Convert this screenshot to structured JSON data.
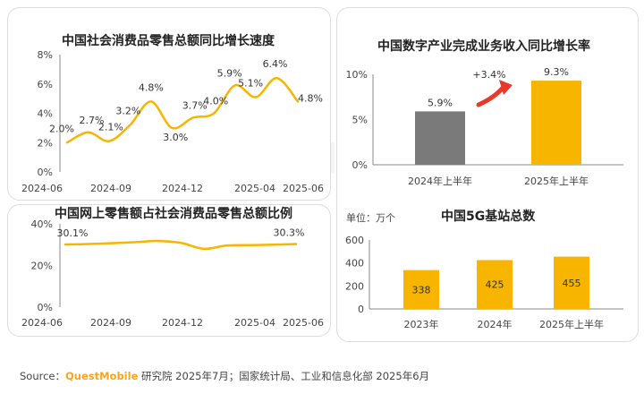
{
  "chart_data": [
    {
      "type": "line",
      "title": "中国社会消费品零售总额同比增长速度",
      "x_labels": [
        "2024-06",
        "2024-09",
        "2024-12",
        "2025-04",
        "2025-06"
      ],
      "y_ticks": [
        "0%",
        "2%",
        "4%",
        "6%",
        "8%"
      ],
      "ylim": [
        0,
        8
      ],
      "series": [
        {
          "values": [
            2.0,
            2.7,
            2.1,
            3.2,
            4.8,
            3.0,
            3.7,
            4.0,
            5.9,
            5.1,
            6.4,
            4.8
          ]
        }
      ],
      "point_labels": [
        "2.0%",
        "2.7%",
        "2.1%",
        "3.2%",
        "4.8%",
        "3.0%",
        "3.7%",
        "4.0%",
        "5.9%",
        "5.1%",
        "6.4%",
        "4.8%"
      ],
      "color": "#f7b500"
    },
    {
      "type": "line",
      "title": "中国网上零售额占社会消费品零售总额比例",
      "x_labels": [
        "2024-06",
        "2024-09",
        "2024-12",
        "2025-04",
        "2025-06"
      ],
      "y_ticks": [
        "0%",
        "20%",
        "40%"
      ],
      "ylim": [
        0,
        40
      ],
      "series": [
        {
          "values": [
            30.1,
            30.3,
            30.7,
            31.2,
            31.8,
            30.9,
            28.0,
            29.6,
            29.8,
            30.0,
            30.3
          ]
        }
      ],
      "point_labels": [
        "30.1%",
        "30.3%"
      ],
      "color": "#f7b500"
    },
    {
      "type": "bar",
      "title": "中国数字产业完成业务收入同比增长率",
      "categories": [
        "2024年上半年",
        "2025年上半年"
      ],
      "values": [
        5.9,
        9.3
      ],
      "value_labels": [
        "5.9%",
        "9.3%"
      ],
      "y_ticks": [
        "0%",
        "5%",
        "10%"
      ],
      "ylim": [
        0,
        10
      ],
      "annotation": "+3.4%",
      "colors": [
        "#7a7a7a",
        "#f7b500"
      ]
    },
    {
      "type": "bar",
      "title": "中国5G基站总数",
      "unit": "单位：万个",
      "categories": [
        "2023年",
        "2024年",
        "2025年上半年"
      ],
      "values": [
        338,
        425,
        455
      ],
      "value_labels": [
        "338",
        "425",
        "455"
      ],
      "y_ticks": [
        "0",
        "200",
        "400",
        "600"
      ],
      "ylim": [
        0,
        600
      ],
      "color": "#f7b500"
    }
  ],
  "footer": {
    "source_prefix": "Source：",
    "brand": "QuestMobile",
    "source_rest": " 研究院 2025年7月；国家统计局、工业和信息化部 2025年6月"
  },
  "watermark": "QUEST MOBILE",
  "colors": {
    "accent": "#f7b500",
    "gray_bar": "#7a7a7a",
    "annotation": "#e8392a"
  }
}
